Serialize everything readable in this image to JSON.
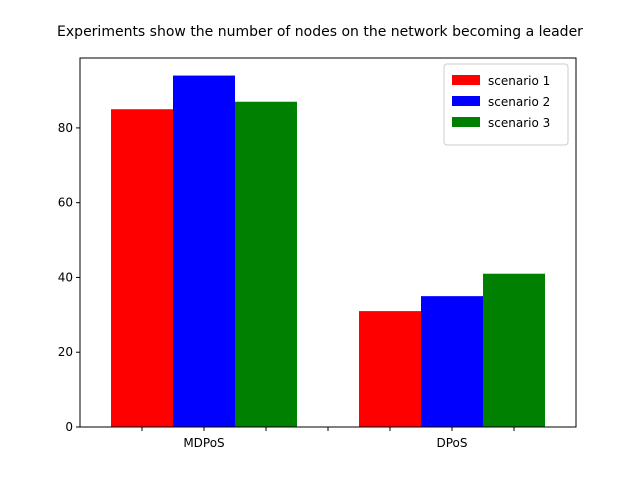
{
  "chart_data": {
    "type": "bar",
    "title": "Experiments show the number of nodes on the network becoming a leader",
    "xlabel": "",
    "ylabel": "",
    "categories": [
      "MDPoS",
      "DPoS"
    ],
    "series": [
      {
        "name": "scenario 1",
        "values": [
          85,
          31
        ],
        "color": "#ff0000"
      },
      {
        "name": "scenario 2",
        "values": [
          94,
          35
        ],
        "color": "#0000ff"
      },
      {
        "name": "scenario 3",
        "values": [
          87,
          41
        ],
        "color": "#008000"
      }
    ],
    "ylim": [
      0,
      98.7
    ],
    "yticks": [
      0,
      20,
      40,
      60,
      80
    ],
    "grid": false,
    "legend_position": "top-right"
  }
}
